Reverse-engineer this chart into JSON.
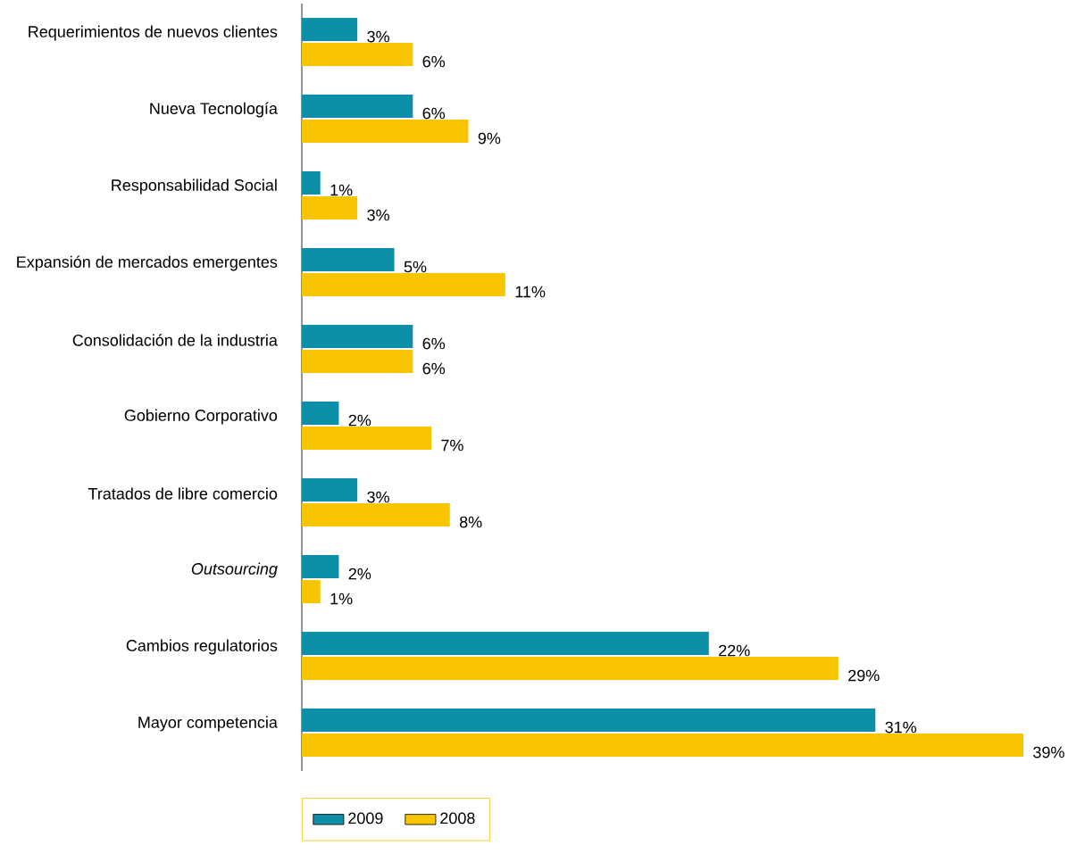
{
  "chart_data": {
    "type": "bar",
    "orientation": "horizontal",
    "categories": [
      "Requerimientos de nuevos clientes",
      "Nueva Tecnología",
      "Responsabilidad Social",
      "Expansión de mercados emergentes",
      "Consolidación de la industria",
      "Gobierno Corporativo",
      "Tratados de libre comercio",
      "*Outsourcing*",
      "Cambios regulatorios",
      "Mayor competencia"
    ],
    "series": [
      {
        "name": "2009",
        "color": "#0e8fa8",
        "values": [
          3,
          6,
          1,
          5,
          6,
          2,
          3,
          2,
          22,
          31
        ],
        "value_labels": [
          "3%",
          "6%",
          "1%",
          "5%",
          "6%",
          "2%",
          "3%",
          "2%",
          "22%",
          "31%"
        ]
      },
      {
        "name": "2008",
        "color": "#f9c400",
        "values": [
          6,
          9,
          3,
          11,
          6,
          7,
          8,
          1,
          29,
          39
        ],
        "value_labels": [
          "6%",
          "9%",
          "3%",
          "11%",
          "6%",
          "7%",
          "8%",
          "1%",
          "29%",
          "39%"
        ]
      }
    ],
    "tick_labels": "y",
    "legend": "bottom"
  }
}
